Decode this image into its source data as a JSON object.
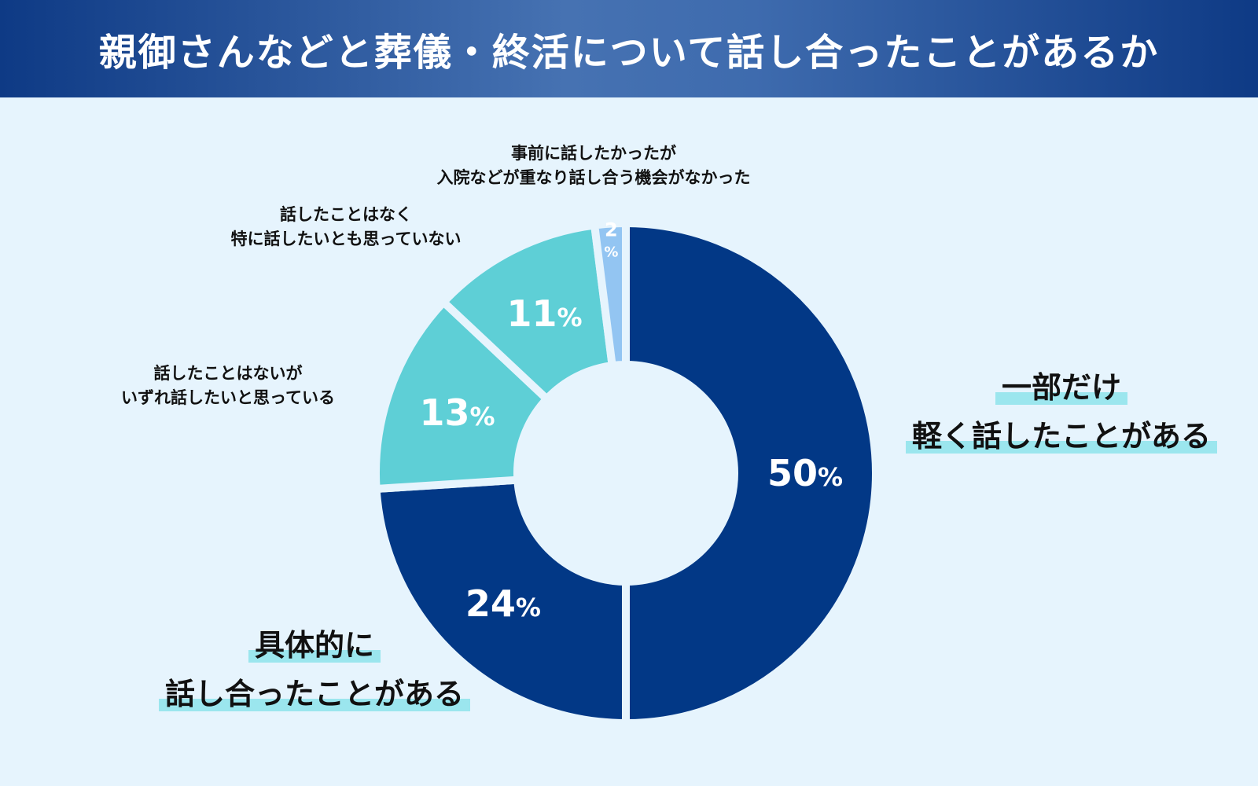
{
  "title": "親御さんなどと葬儀・終活について話し合ったことがあるか",
  "colors": {
    "dark_navy": "#023886",
    "cyan": "#5ecfd6",
    "light_blue": "#93c5f2",
    "highlight": "#9be6ee",
    "background": "#e6f4fd"
  },
  "chart_data": {
    "type": "pie",
    "style": "donut",
    "title": "親御さんなどと葬儀・終活について話し合ったことがあるか",
    "unit": "%",
    "slices": [
      {
        "lines": [
          "一部だけ",
          "軽く話したことがある"
        ],
        "value": 50,
        "color": "#023886",
        "value_label": "50",
        "label_emphasis": "large-highlight"
      },
      {
        "lines": [
          "具体的に",
          "話し合ったことがある"
        ],
        "value": 24,
        "color": "#023886",
        "value_label": "24",
        "label_emphasis": "large-highlight"
      },
      {
        "lines": [
          "話したことはないが",
          "いずれ話したいと思っている"
        ],
        "value": 13,
        "color": "#5ecfd6",
        "value_label": "13",
        "label_emphasis": "small"
      },
      {
        "lines": [
          "話したことはなく",
          "特に話したいとも思っていない"
        ],
        "value": 11,
        "color": "#5ecfd6",
        "value_label": "11",
        "label_emphasis": "small"
      },
      {
        "lines": [
          "事前に話したかったが",
          "入院などが重なり話し合う機会がなかった"
        ],
        "value": 2,
        "color": "#93c5f2",
        "value_label": "2",
        "label_emphasis": "small"
      }
    ]
  }
}
